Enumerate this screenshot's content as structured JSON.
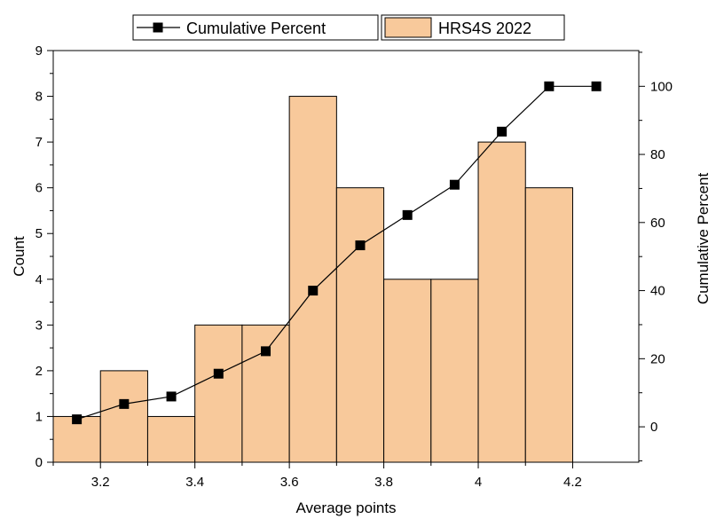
{
  "chart_data": {
    "type": "bar",
    "bins": [
      {
        "from": 3.1,
        "to": 3.2,
        "count": 1
      },
      {
        "from": 3.2,
        "to": 3.3,
        "count": 2
      },
      {
        "from": 3.3,
        "to": 3.4,
        "count": 1
      },
      {
        "from": 3.4,
        "to": 3.5,
        "count": 3
      },
      {
        "from": 3.5,
        "to": 3.6,
        "count": 3
      },
      {
        "from": 3.6,
        "to": 3.7,
        "count": 8
      },
      {
        "from": 3.7,
        "to": 3.8,
        "count": 6
      },
      {
        "from": 3.8,
        "to": 3.9,
        "count": 4
      },
      {
        "from": 3.9,
        "to": 4.0,
        "count": 4
      },
      {
        "from": 4.0,
        "to": 4.1,
        "count": 7
      },
      {
        "from": 4.1,
        "to": 4.2,
        "count": 6
      }
    ],
    "cumulative": {
      "x": [
        3.15,
        3.25,
        3.35,
        3.45,
        3.55,
        3.65,
        3.75,
        3.85,
        3.95,
        4.05,
        4.15,
        4.25
      ],
      "y": [
        2.2,
        6.7,
        8.9,
        15.6,
        22.2,
        40.0,
        53.3,
        62.2,
        71.1,
        86.7,
        100.0,
        100.0
      ]
    },
    "series": [
      {
        "name": "Cumulative Percent",
        "type": "line",
        "color": "#000000"
      },
      {
        "name": "HRS4S 2022",
        "type": "bar",
        "color": "#F8C99B"
      }
    ],
    "xlabel": "Average points",
    "ylabel": "Count",
    "y2label": "Cumulative Percent",
    "xlim": [
      3.1,
      4.34
    ],
    "ylim": [
      0,
      9
    ],
    "y2lim": [
      -10.4,
      110.5
    ],
    "x_ticks": [
      3.2,
      3.4,
      3.6,
      3.8,
      4.0,
      4.2
    ],
    "x_tick_labels": [
      "3.2",
      "3.4",
      "3.6",
      "3.8",
      "4",
      "4.2"
    ],
    "y_ticks": [
      0,
      1,
      2,
      3,
      4,
      5,
      6,
      7,
      8,
      9
    ],
    "y_tick_labels": [
      "0",
      "1",
      "2",
      "3",
      "4",
      "5",
      "6",
      "7",
      "8",
      "9"
    ],
    "y2_ticks": [
      0,
      20,
      40,
      60,
      80,
      100
    ],
    "y2_tick_labels": [
      "0",
      "20",
      "40",
      "60",
      "80",
      "100"
    ],
    "legend_position": "top",
    "grid": false
  }
}
